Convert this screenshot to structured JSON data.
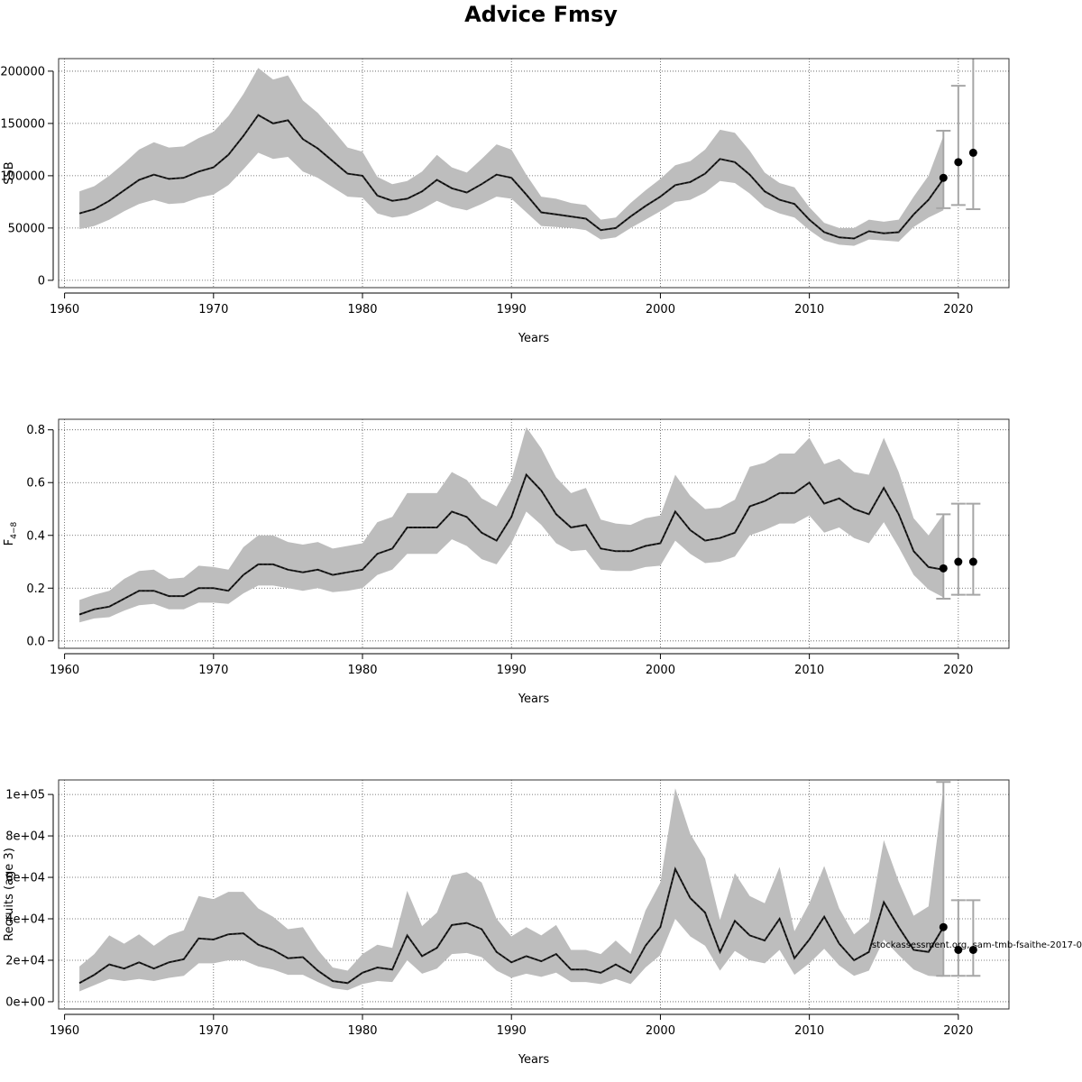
{
  "chart_data": {
    "title": "Advice Fmsy",
    "note": "stockassessment.org, sam-tmb-fsaithe-2017-0",
    "panels": [
      {
        "type": "line",
        "ylabel": "SSB",
        "xlabel": "Years",
        "xlim": [
          1959.6,
          2023.4
        ],
        "ylim": [
          -7000,
          212000
        ],
        "xticks": [
          1960,
          1970,
          1980,
          1990,
          2000,
          2010,
          2020
        ],
        "yticks": [
          0,
          50000,
          100000,
          150000,
          200000
        ],
        "ytick_labels": [
          "0",
          "50000",
          "100000",
          "150000",
          "200000"
        ],
        "grid": true,
        "years": [
          1961,
          1962,
          1963,
          1964,
          1965,
          1966,
          1967,
          1968,
          1969,
          1970,
          1971,
          1972,
          1973,
          1974,
          1975,
          1976,
          1977,
          1978,
          1979,
          1980,
          1981,
          1982,
          1983,
          1984,
          1985,
          1986,
          1987,
          1988,
          1989,
          1990,
          1991,
          1992,
          1993,
          1994,
          1995,
          1996,
          1997,
          1998,
          1999,
          2000,
          2001,
          2002,
          2003,
          2004,
          2005,
          2006,
          2007,
          2008,
          2009,
          2010,
          2011,
          2012,
          2013,
          2014,
          2015,
          2016,
          2017,
          2018,
          2019
        ],
        "estimate": [
          64000,
          68000,
          76000,
          86000,
          96000,
          101000,
          97000,
          98000,
          104000,
          108000,
          120000,
          138000,
          158000,
          150000,
          153000,
          135000,
          126000,
          114000,
          102000,
          100000,
          81000,
          76000,
          78000,
          85000,
          96000,
          88000,
          84000,
          92000,
          101000,
          98000,
          82000,
          65000,
          63000,
          61000,
          59000,
          48000,
          50000,
          61000,
          71000,
          80000,
          91000,
          94000,
          102000,
          116000,
          113000,
          101000,
          85000,
          77000,
          73000,
          58000,
          46000,
          41000,
          40000,
          47000,
          45000,
          46000,
          63000,
          77000,
          97000
        ],
        "lower": [
          49000,
          52000,
          58000,
          66000,
          73000,
          77000,
          73000,
          74000,
          79000,
          82000,
          91000,
          106000,
          122000,
          116000,
          118000,
          104000,
          98000,
          89000,
          80000,
          79000,
          64000,
          60000,
          62000,
          68000,
          76000,
          70000,
          67000,
          73000,
          80000,
          78000,
          65000,
          52000,
          51000,
          50000,
          48000,
          39000,
          41000,
          50000,
          58000,
          66000,
          75000,
          77000,
          84000,
          95000,
          93000,
          83000,
          70000,
          64000,
          60000,
          48000,
          38000,
          34000,
          33000,
          39000,
          38000,
          37000,
          51000,
          60000,
          67000
        ],
        "upper": [
          85000,
          90000,
          100000,
          112000,
          125000,
          132000,
          127000,
          128000,
          136000,
          142000,
          157000,
          178000,
          203000,
          192000,
          196000,
          172000,
          160000,
          144000,
          127000,
          123000,
          99000,
          92000,
          95000,
          104000,
          120000,
          108000,
          103000,
          116000,
          130000,
          125000,
          101000,
          80000,
          78000,
          74000,
          72000,
          58000,
          60000,
          74000,
          86000,
          97000,
          110000,
          114000,
          125000,
          144000,
          141000,
          124000,
          103000,
          93000,
          89000,
          70000,
          55000,
          50000,
          50000,
          58000,
          56000,
          58000,
          80000,
          100000,
          138000
        ],
        "forecast": [
          {
            "year": 2019,
            "value": 98000,
            "low": 69000,
            "high": 143000
          },
          {
            "year": 2020,
            "value": 113000,
            "low": 72000,
            "high": 186000
          },
          {
            "year": 2021,
            "value": 122000,
            "low": 68000,
            "high": 215000
          }
        ]
      },
      {
        "type": "line",
        "ylabel": "F4−8",
        "ylabel_main": "F",
        "ylabel_sub": "4−8",
        "xlabel": "Years",
        "xlim": [
          1959.6,
          2023.4
        ],
        "ylim": [
          -0.028,
          0.84
        ],
        "xticks": [
          1960,
          1970,
          1980,
          1990,
          2000,
          2010,
          2020
        ],
        "yticks": [
          0,
          0.2,
          0.4,
          0.6,
          0.8
        ],
        "ytick_labels": [
          "0.0",
          "0.2",
          "0.4",
          "0.6",
          "0.8"
        ],
        "grid": true,
        "years": [
          1961,
          1962,
          1963,
          1964,
          1965,
          1966,
          1967,
          1968,
          1969,
          1970,
          1971,
          1972,
          1973,
          1974,
          1975,
          1976,
          1977,
          1978,
          1979,
          1980,
          1981,
          1982,
          1983,
          1984,
          1985,
          1986,
          1987,
          1988,
          1989,
          1990,
          1991,
          1992,
          1993,
          1994,
          1995,
          1996,
          1997,
          1998,
          1999,
          2000,
          2001,
          2002,
          2003,
          2004,
          2005,
          2006,
          2007,
          2008,
          2009,
          2010,
          2011,
          2012,
          2013,
          2014,
          2015,
          2016,
          2017,
          2018,
          2019
        ],
        "estimate": [
          0.1,
          0.12,
          0.13,
          0.16,
          0.19,
          0.19,
          0.17,
          0.17,
          0.2,
          0.2,
          0.19,
          0.25,
          0.29,
          0.29,
          0.27,
          0.26,
          0.27,
          0.25,
          0.26,
          0.27,
          0.33,
          0.35,
          0.43,
          0.43,
          0.43,
          0.49,
          0.47,
          0.41,
          0.38,
          0.47,
          0.63,
          0.57,
          0.48,
          0.43,
          0.44,
          0.35,
          0.34,
          0.34,
          0.36,
          0.37,
          0.49,
          0.42,
          0.38,
          0.39,
          0.41,
          0.51,
          0.53,
          0.56,
          0.56,
          0.6,
          0.52,
          0.54,
          0.5,
          0.48,
          0.58,
          0.48,
          0.34,
          0.28,
          0.27
        ],
        "lower": [
          0.07,
          0.085,
          0.09,
          0.115,
          0.135,
          0.14,
          0.12,
          0.12,
          0.145,
          0.145,
          0.14,
          0.18,
          0.21,
          0.21,
          0.2,
          0.19,
          0.2,
          0.185,
          0.19,
          0.2,
          0.25,
          0.27,
          0.33,
          0.33,
          0.33,
          0.385,
          0.36,
          0.31,
          0.29,
          0.37,
          0.49,
          0.44,
          0.37,
          0.34,
          0.345,
          0.27,
          0.265,
          0.265,
          0.28,
          0.285,
          0.38,
          0.33,
          0.295,
          0.3,
          0.32,
          0.4,
          0.42,
          0.445,
          0.445,
          0.475,
          0.41,
          0.43,
          0.39,
          0.37,
          0.45,
          0.355,
          0.25,
          0.195,
          0.165
        ],
        "upper": [
          0.155,
          0.175,
          0.19,
          0.235,
          0.265,
          0.27,
          0.235,
          0.24,
          0.285,
          0.28,
          0.27,
          0.355,
          0.4,
          0.4,
          0.375,
          0.365,
          0.375,
          0.35,
          0.36,
          0.37,
          0.45,
          0.47,
          0.56,
          0.56,
          0.56,
          0.64,
          0.61,
          0.54,
          0.51,
          0.61,
          0.81,
          0.73,
          0.62,
          0.56,
          0.58,
          0.46,
          0.445,
          0.44,
          0.465,
          0.475,
          0.63,
          0.55,
          0.5,
          0.505,
          0.535,
          0.66,
          0.675,
          0.71,
          0.71,
          0.77,
          0.67,
          0.69,
          0.64,
          0.63,
          0.77,
          0.64,
          0.465,
          0.4,
          0.48
        ],
        "forecast": [
          {
            "year": 2019,
            "value": 0.275,
            "low": 0.16,
            "high": 0.48
          },
          {
            "year": 2020,
            "value": 0.3,
            "low": 0.175,
            "high": 0.52
          },
          {
            "year": 2021,
            "value": 0.3,
            "low": 0.175,
            "high": 0.52
          }
        ]
      },
      {
        "type": "line",
        "ylabel": "Recruits (age 3)",
        "xlabel": "Years",
        "xlim": [
          1959.6,
          2023.4
        ],
        "ylim": [
          -3500,
          107000
        ],
        "xticks": [
          1960,
          1970,
          1980,
          1990,
          2000,
          2010,
          2020
        ],
        "yticks": [
          0,
          20000,
          40000,
          60000,
          80000,
          100000
        ],
        "ytick_labels": [
          "0e+00",
          "2e+04",
          "4e+04",
          "6e+04",
          "8e+04",
          "1e+05"
        ],
        "grid": true,
        "years": [
          1961,
          1962,
          1963,
          1964,
          1965,
          1966,
          1967,
          1968,
          1969,
          1970,
          1971,
          1972,
          1973,
          1974,
          1975,
          1976,
          1977,
          1978,
          1979,
          1980,
          1981,
          1982,
          1983,
          1984,
          1985,
          1986,
          1987,
          1988,
          1989,
          1990,
          1991,
          1992,
          1993,
          1994,
          1995,
          1996,
          1997,
          1998,
          1999,
          2000,
          2001,
          2002,
          2003,
          2004,
          2005,
          2006,
          2007,
          2008,
          2009,
          2010,
          2011,
          2012,
          2013,
          2014,
          2015,
          2016,
          2017,
          2018,
          2019
        ],
        "estimate": [
          9000,
          13000,
          18000,
          16000,
          19000,
          16000,
          19000,
          20500,
          30500,
          30000,
          32500,
          33000,
          27500,
          25000,
          21000,
          21500,
          15000,
          10000,
          9000,
          14000,
          16500,
          15500,
          32000,
          22000,
          26000,
          37000,
          38000,
          35000,
          24000,
          19000,
          22000,
          19500,
          23000,
          15500,
          15500,
          14000,
          18000,
          14000,
          27000,
          36000,
          64000,
          50000,
          43000,
          24000,
          39000,
          32000,
          29500,
          40000,
          21000,
          30000,
          41000,
          28000,
          20000,
          24000,
          48000,
          36000,
          25000,
          24000,
          36000
        ],
        "lower": [
          5000,
          8000,
          11000,
          10000,
          11000,
          10000,
          11500,
          12500,
          18500,
          18500,
          20000,
          20000,
          17000,
          15500,
          13000,
          13000,
          9500,
          6500,
          5500,
          8500,
          10000,
          9500,
          20000,
          13500,
          16000,
          23000,
          23500,
          21500,
          15000,
          11500,
          13500,
          12000,
          14000,
          9500,
          9500,
          8500,
          11000,
          8500,
          16500,
          22500,
          40000,
          31500,
          27000,
          15000,
          24500,
          20000,
          18500,
          25000,
          13000,
          18500,
          25500,
          17500,
          12500,
          15000,
          30000,
          22500,
          15500,
          12500,
          12000
        ],
        "upper": [
          17000,
          23000,
          32000,
          28000,
          32500,
          27000,
          32000,
          34500,
          51000,
          49500,
          53000,
          53000,
          45000,
          41000,
          35000,
          36000,
          25000,
          16500,
          15000,
          23000,
          27500,
          26000,
          53500,
          36500,
          43000,
          61000,
          62500,
          57500,
          40000,
          31500,
          36000,
          32000,
          37000,
          25000,
          25000,
          23000,
          29500,
          23000,
          44000,
          57500,
          103000,
          81000,
          69000,
          39500,
          62000,
          51000,
          47500,
          65000,
          34000,
          47500,
          65500,
          45000,
          32500,
          38500,
          78000,
          58000,
          41500,
          46000,
          103000
        ],
        "forecast": [
          {
            "year": 2019,
            "value": 36000,
            "low": 12500,
            "high": 106000
          },
          {
            "year": 2020,
            "value": 25000,
            "low": 12500,
            "high": 49000
          },
          {
            "year": 2021,
            "value": 25000,
            "low": 12500,
            "high": 49000
          }
        ]
      }
    ]
  }
}
